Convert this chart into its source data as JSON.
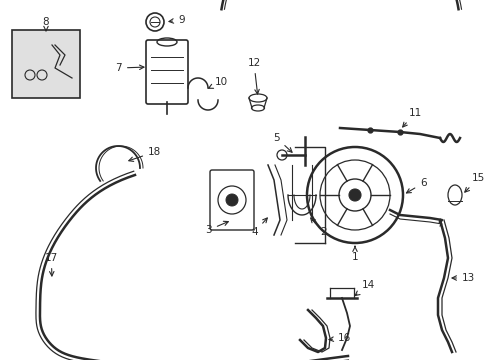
{
  "bg_color": "#ffffff",
  "line_color": "#2a2a2a",
  "lw": 1.3,
  "lw2": 1.8,
  "fig_width": 4.89,
  "fig_height": 3.6,
  "dpi": 100
}
